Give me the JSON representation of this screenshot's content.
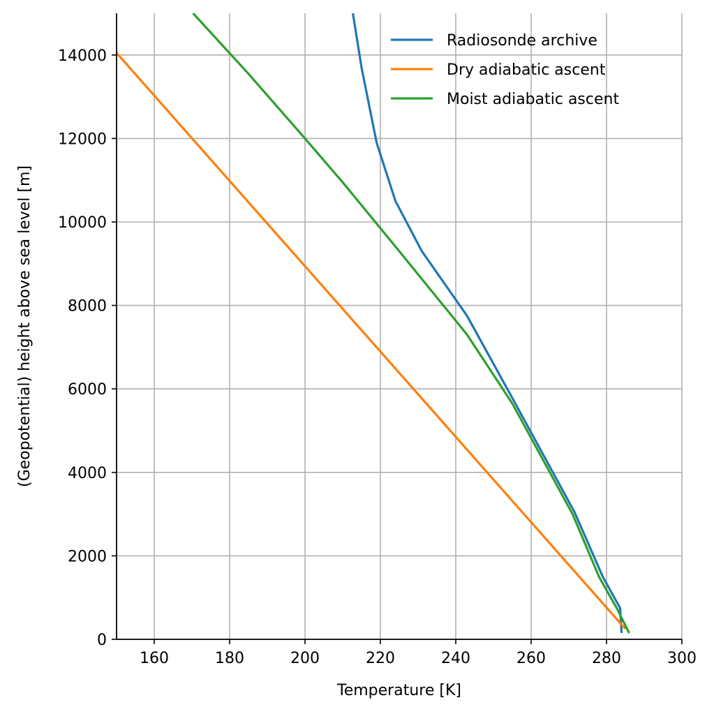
{
  "chart_data": {
    "type": "line",
    "title": "",
    "xlabel": "Temperature [K]",
    "ylabel": "(Geopotential) height above sea level [m]",
    "xlim": [
      150,
      300
    ],
    "ylim": [
      0,
      15000
    ],
    "xticks": [
      160,
      180,
      200,
      220,
      240,
      260,
      280,
      300
    ],
    "yticks": [
      0,
      2000,
      4000,
      6000,
      8000,
      10000,
      12000,
      14000
    ],
    "grid": true,
    "legend_position": "top-right",
    "series": [
      {
        "name": "Radiosonde archive",
        "color": "#1f77b4",
        "points": [
          [
            284.0,
            150
          ],
          [
            283.6,
            750
          ],
          [
            279.0,
            1500
          ],
          [
            271.5,
            3050
          ],
          [
            255.5,
            5700
          ],
          [
            243.0,
            7750
          ],
          [
            231.0,
            9300
          ],
          [
            224.0,
            10500
          ],
          [
            219.0,
            11900
          ],
          [
            215.0,
            13700
          ],
          [
            212.7,
            15000
          ]
        ]
      },
      {
        "name": "Dry adiabatic ascent",
        "color": "#ff7f0e",
        "points": [
          [
            285.0,
            250
          ],
          [
            150.0,
            14050
          ]
        ]
      },
      {
        "name": "Moist adiabatic ascent",
        "color": "#2ca02c",
        "points": [
          [
            286.0,
            150
          ],
          [
            283.0,
            700
          ],
          [
            278.0,
            1500
          ],
          [
            271.0,
            3000
          ],
          [
            255.0,
            5650
          ],
          [
            243.0,
            7300
          ],
          [
            225.0,
            9300
          ],
          [
            210.0,
            10950
          ],
          [
            200.0,
            12000
          ],
          [
            185.0,
            13550
          ],
          [
            170.3,
            15000
          ]
        ]
      }
    ]
  }
}
